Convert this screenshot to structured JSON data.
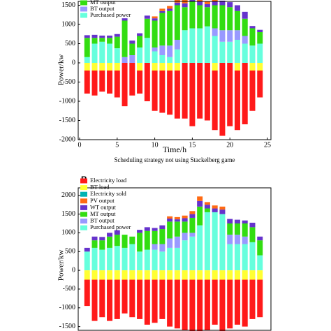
{
  "chart_data": [
    {
      "type": "bar",
      "stacked": true,
      "title": "Scheduling strategy not using Stackelberg game",
      "xlabel": "Time/h",
      "ylabel": "Power/kw",
      "x": [
        1,
        2,
        3,
        4,
        5,
        6,
        7,
        8,
        9,
        10,
        11,
        12,
        13,
        14,
        15,
        16,
        17,
        18,
        19,
        20,
        21,
        22,
        23,
        24
      ],
      "xlim": [
        0,
        25
      ],
      "xticks": [
        0,
        5,
        10,
        15,
        20,
        25
      ],
      "ylim": [
        -2000,
        1600
      ],
      "yticks": [
        -2000,
        -1500,
        -1000,
        -500,
        0,
        500,
        1000,
        1500
      ],
      "series": [
        {
          "name": "Electricity load",
          "color": "#ff1a1a",
          "values": [
            -600,
            -650,
            -550,
            -600,
            -700,
            -1130,
            -850,
            -600,
            -1000,
            -1050,
            -1100,
            -1150,
            -1250,
            -1450,
            -1650,
            -1450,
            -1500,
            -1550,
            -1900,
            -1650,
            -1550,
            -1600,
            -1050,
            -700
          ]
        },
        {
          "name": "BT load",
          "color": "#ffff33",
          "values": [
            -200,
            -200,
            -200,
            -200,
            -200,
            0,
            0,
            -200,
            0,
            -200,
            -200,
            -200,
            -200,
            0,
            0,
            0,
            0,
            -200,
            0,
            0,
            -200,
            0,
            -200,
            -200
          ]
        },
        {
          "name": "Electricity sold",
          "color": "#00b3b3",
          "values": [
            0,
            0,
            0,
            0,
            0,
            0,
            0,
            0,
            0,
            0,
            0,
            0,
            0,
            0,
            0,
            0,
            0,
            0,
            0,
            0,
            0,
            0,
            0,
            0
          ]
        },
        {
          "name": "PV output",
          "color": "#ff6a13",
          "values": [
            0,
            0,
            0,
            0,
            0,
            0,
            0,
            0,
            0,
            50,
            60,
            70,
            80,
            90,
            80,
            70,
            60,
            50,
            0,
            0,
            0,
            0,
            0,
            0
          ]
        },
        {
          "name": "WT output",
          "color": "#6633cc",
          "values": [
            70,
            80,
            60,
            60,
            70,
            60,
            80,
            70,
            80,
            60,
            50,
            60,
            70,
            100,
            80,
            90,
            80,
            100,
            120,
            130,
            150,
            180,
            60,
            60
          ]
        },
        {
          "name": "MT output",
          "color": "#33dd11",
          "values": [
            500,
            150,
            100,
            150,
            300,
            950,
            300,
            300,
            500,
            700,
            850,
            900,
            900,
            600,
            700,
            600,
            500,
            600,
            650,
            600,
            500,
            450,
            450,
            300
          ]
        },
        {
          "name": "BT output",
          "color": "#9999ff",
          "values": [
            0,
            0,
            0,
            0,
            0,
            150,
            200,
            0,
            0,
            100,
            250,
            300,
            250,
            0,
            0,
            0,
            0,
            200,
            300,
            300,
            250,
            200,
            0,
            0
          ]
        },
        {
          "name": "Purchased power",
          "color": "#66ffdd",
          "values": [
            150,
            500,
            550,
            500,
            380,
            0,
            0,
            400,
            650,
            300,
            200,
            150,
            350,
            850,
            900,
            900,
            950,
            700,
            550,
            550,
            600,
            500,
            450,
            500
          ]
        }
      ]
    },
    {
      "type": "bar",
      "stacked": true,
      "panel_label": "B",
      "ylabel": "Power/kw",
      "x": [
        1,
        2,
        3,
        4,
        5,
        6,
        7,
        8,
        9,
        10,
        11,
        12,
        13,
        14,
        15,
        16,
        17,
        18,
        19,
        20,
        21,
        22,
        23,
        24
      ],
      "xlim": [
        0,
        25
      ],
      "ylim": [
        -1600,
        2200
      ],
      "yticks": [
        -1500,
        -1000,
        -500,
        0,
        500,
        1000,
        1500,
        2000
      ],
      "series": [
        {
          "name": "Electricity load",
          "color": "#ff1a1a",
          "values": [
            -700,
            -1100,
            -1000,
            -1100,
            -1050,
            -900,
            -1000,
            -1050,
            -1200,
            -1150,
            -1050,
            -1250,
            -1300,
            -1350,
            -1550,
            -1400,
            -1350,
            -1200,
            -1450,
            -1300,
            -1200,
            -1250,
            -1050,
            -1000
          ]
        },
        {
          "name": "BT load",
          "color": "#ffff33",
          "values": [
            -250,
            -250,
            -250,
            -250,
            -250,
            -250,
            -250,
            -250,
            -250,
            -250,
            -250,
            -250,
            -250,
            -250,
            -250,
            -250,
            -250,
            -250,
            -250,
            -250,
            -250,
            -250,
            -250,
            -250
          ]
        },
        {
          "name": "Electricity sold",
          "color": "#00b3b3",
          "values": [
            0,
            0,
            0,
            0,
            0,
            0,
            0,
            0,
            0,
            0,
            0,
            0,
            0,
            0,
            0,
            0,
            0,
            0,
            0,
            0,
            0,
            0,
            0,
            0
          ]
        },
        {
          "name": "PV output",
          "color": "#ff6a13",
          "values": [
            0,
            0,
            0,
            0,
            0,
            0,
            0,
            0,
            0,
            0,
            0,
            60,
            60,
            70,
            80,
            120,
            70,
            80,
            80,
            0,
            0,
            0,
            0,
            0
          ]
        },
        {
          "name": "WT output",
          "color": "#6633cc",
          "values": [
            100,
            100,
            90,
            100,
            120,
            0,
            0,
            80,
            100,
            80,
            100,
            80,
            60,
            90,
            100,
            150,
            100,
            100,
            120,
            120,
            100,
            80,
            120,
            100
          ]
        },
        {
          "name": "MT output",
          "color": "#33dd11",
          "values": [
            0,
            200,
            250,
            300,
            300,
            350,
            200,
            500,
            500,
            350,
            400,
            450,
            400,
            300,
            400,
            500,
            100,
            0,
            0,
            300,
            300,
            350,
            400,
            400
          ]
        },
        {
          "name": "BT output",
          "color": "#9999ff",
          "values": [
            0,
            0,
            0,
            0,
            0,
            0,
            0,
            0,
            0,
            150,
            200,
            250,
            300,
            200,
            100,
            0,
            0,
            0,
            0,
            250,
            250,
            200,
            0,
            0
          ]
        },
        {
          "name": "Purchased power",
          "color": "#66ffdd",
          "values": [
            500,
            600,
            550,
            600,
            650,
            600,
            700,
            500,
            550,
            550,
            500,
            600,
            600,
            800,
            900,
            1200,
            1550,
            1550,
            1500,
            700,
            700,
            700,
            750,
            400
          ]
        }
      ]
    }
  ]
}
